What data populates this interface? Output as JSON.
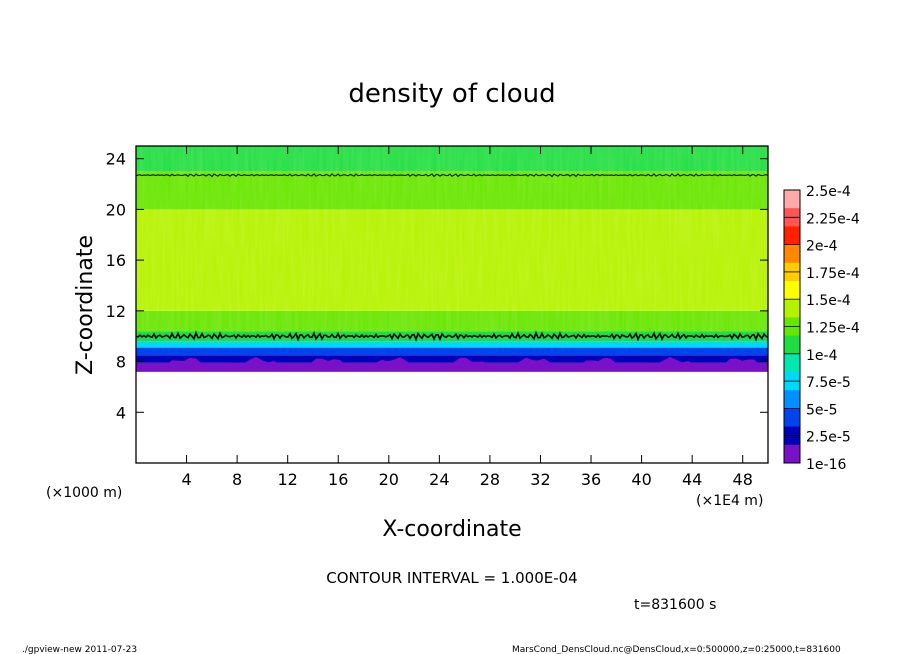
{
  "chart_data": {
    "type": "heatmap",
    "title": "density of cloud",
    "xlabel": "X-coordinate",
    "ylabel": "Z-coordinate",
    "x_unit_left": "(×1000 m)",
    "x_unit_right": "(×1E4 m)",
    "xlim": [
      0,
      50
    ],
    "ylim": [
      0,
      25
    ],
    "x_ticks": [
      "4",
      "8",
      "12",
      "16",
      "20",
      "24",
      "28",
      "32",
      "36",
      "40",
      "44",
      "48"
    ],
    "y_ticks": [
      "4",
      "8",
      "12",
      "16",
      "20",
      "24"
    ],
    "x_tick_values": [
      4,
      8,
      12,
      16,
      20,
      24,
      28,
      32,
      36,
      40,
      44,
      48
    ],
    "y_tick_values": [
      4,
      8,
      12,
      16,
      20,
      24
    ],
    "field_layers": [
      {
        "z": [
          0,
          7.2
        ],
        "value": null
      },
      {
        "z": [
          7.2,
          7.9
        ],
        "value": 1e-16
      },
      {
        "z": [
          7.9,
          8.5
        ],
        "value": 2.5e-05
      },
      {
        "z": [
          8.5,
          9.1
        ],
        "value": 5e-05
      },
      {
        "z": [
          9.1,
          9.6
        ],
        "value": 7.5e-05
      },
      {
        "z": [
          9.6,
          10.4
        ],
        "value": 0.0001
      },
      {
        "z": [
          10.4,
          12
        ],
        "value": 0.000125
      },
      {
        "z": [
          12,
          20
        ],
        "value": 0.00015
      },
      {
        "z": [
          20,
          23
        ],
        "value": 0.000125
      },
      {
        "z": [
          23,
          25
        ],
        "value": 0.0001
      }
    ],
    "contour_lines": [
      {
        "level": 0.0001,
        "z": 10.0
      },
      {
        "level": 0.0001,
        "z": 22.7
      }
    ],
    "colorbar": {
      "labels": [
        "2.5e-4",
        "2.25e-4",
        "2e-4",
        "1.75e-4",
        "1.5e-4",
        "1.25e-4",
        "1e-4",
        "7.5e-5",
        "5e-5",
        "2.5e-5",
        "1e-16"
      ],
      "colors": [
        "#ffaaaa",
        "#ff5555",
        "#ff2200",
        "#ff8800",
        "#ffcc00",
        "#ffff00",
        "#b5f200",
        "#66e600",
        "#1fde44",
        "#00e8b0",
        "#00d8f8",
        "#0090ff",
        "#0044f0",
        "#0000b8",
        "#7a10c8"
      ]
    },
    "annotations": {
      "contour_interval": "CONTOUR INTERVAL = 1.000E-04",
      "time": "t=831600 s",
      "footer_left": "./gpview-new  2011-07-23",
      "footer_right": "MarsCond_DensCloud.nc@DensCloud,x=0:500000,z=0:25000,t=831600"
    }
  }
}
